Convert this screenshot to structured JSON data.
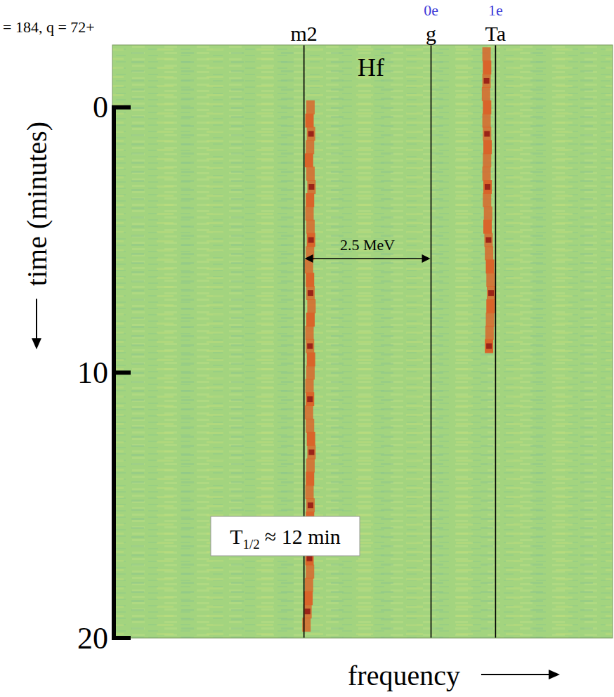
{
  "chart_data": {
    "type": "spectrogram",
    "title": "= 184, q = 72+",
    "x_label": "frequency",
    "y_label": "time (minutes)",
    "xlim": [
      0,
      100
    ],
    "ylim": [
      -2.35,
      20
    ],
    "yticks": [
      0,
      10,
      20
    ],
    "tick_labels": "y",
    "color": "#a3d47f",
    "markers": [
      {
        "label": "m2",
        "x": 38.3
      },
      {
        "label": "g",
        "x": 63.7,
        "charge": "0e"
      },
      {
        "label": "Ta",
        "x": 76.6,
        "charge": "1e"
      }
    ],
    "annotations": [
      {
        "text": "Hf"
      },
      {
        "text": "2.5 MeV"
      }
    ],
    "half_life": {
      "symbol": "T",
      "subscript": "1/2",
      "text": "≈ 12 min"
    },
    "series": [
      {
        "color": "#d9642a",
        "x": [
          39.6,
          39.4,
          39.7,
          39.5,
          39.3,
          39.6,
          39.8,
          39.5,
          39.4,
          39.6,
          39.7,
          39.5,
          39.3,
          39.5,
          39.6,
          39.8,
          39.6,
          39.4,
          39.5,
          39.7,
          39.6,
          39.4,
          39.5,
          39.3,
          39.5,
          39.7,
          39.8,
          39.6,
          39.5,
          39.4,
          39.6,
          39.5,
          39.7,
          39.6,
          39.4,
          39.5,
          39.3,
          39.2,
          39.0,
          38.8
        ],
        "values": [
          0,
          0.5,
          1,
          1.5,
          2,
          2.5,
          3,
          3.5,
          4,
          4.5,
          5,
          5.5,
          6,
          6.5,
          7,
          7.5,
          8,
          8.5,
          9,
          9.5,
          10,
          10.5,
          11,
          11.5,
          12,
          12.5,
          13,
          13.5,
          14,
          14.5,
          15,
          15.5,
          16,
          16.5,
          17,
          17.5,
          18,
          18.5,
          19,
          19.5
        ]
      },
      {
        "color": "#d9642a",
        "x": [
          74.8,
          74.9,
          74.8,
          74.7,
          74.9,
          74.8,
          74.9,
          75.0,
          74.9,
          74.8,
          75.0,
          74.9,
          75.1,
          75.0,
          75.2,
          75.3,
          75.5,
          75.6,
          75.7,
          75.6,
          75.5,
          75.4,
          75.3
        ],
        "values": [
          -2,
          -1.5,
          -1,
          -0.5,
          0,
          0.5,
          1,
          1.5,
          2,
          2.5,
          3,
          3.5,
          4,
          4.5,
          5,
          5.5,
          6,
          6.5,
          7,
          7.5,
          8,
          8.5,
          9
        ]
      }
    ]
  }
}
